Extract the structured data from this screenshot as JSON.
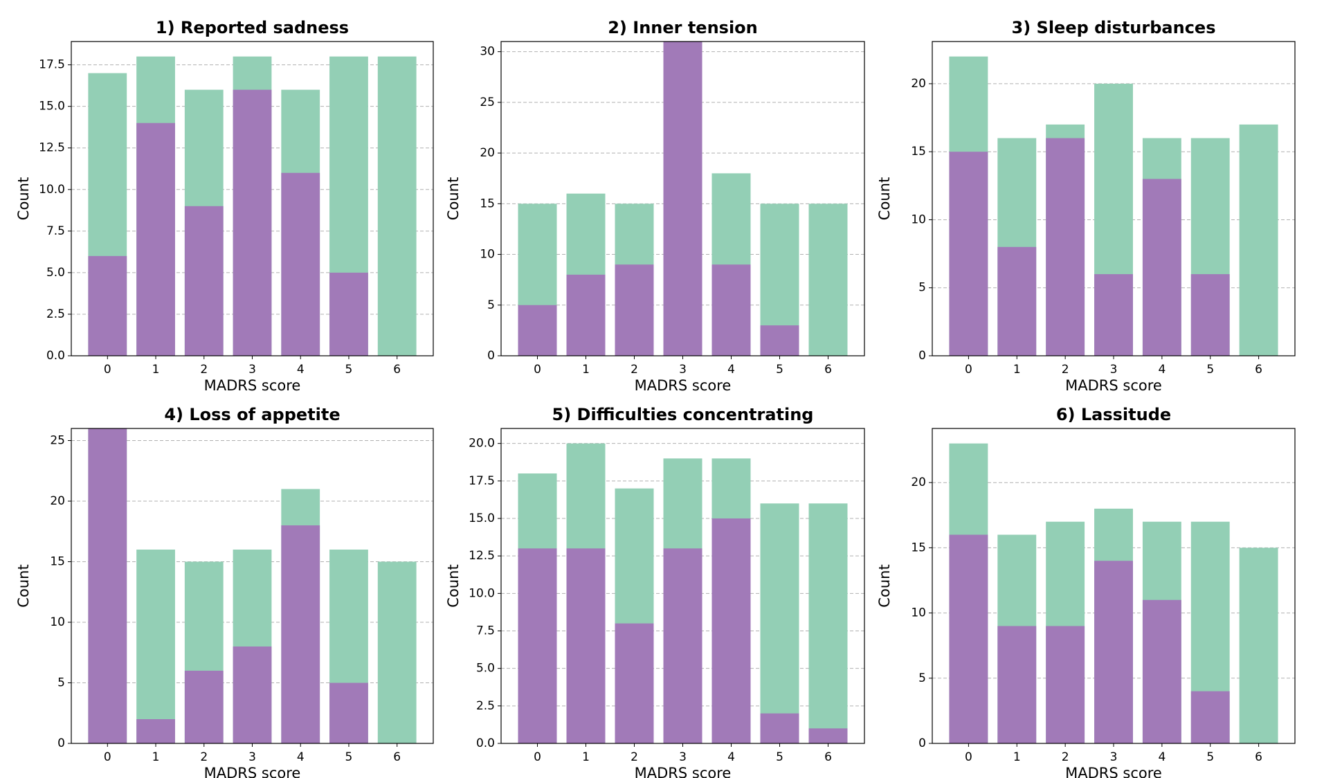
{
  "chart_data": [
    {
      "type": "bar",
      "title": "1) Reported sadness",
      "xlabel": "MADRS score",
      "ylabel": "Count",
      "categories": [
        "0",
        "1",
        "2",
        "3",
        "4",
        "5",
        "6"
      ],
      "series": [
        {
          "color": "#93cfb5",
          "values": [
            17,
            18,
            16,
            18,
            16,
            18,
            18
          ]
        },
        {
          "color": "#a17ab8",
          "values": [
            6,
            14,
            9,
            16,
            11,
            5,
            0
          ]
        }
      ],
      "ylim": [
        0,
        18.9
      ],
      "yticks": [
        {
          "value": 0,
          "label": "0.0"
        },
        {
          "value": 2.5,
          "label": "2.5"
        },
        {
          "value": 5,
          "label": "5.0"
        },
        {
          "value": 7.5,
          "label": "7.5"
        },
        {
          "value": 10,
          "label": "10.0"
        },
        {
          "value": 12.5,
          "label": "12.5"
        },
        {
          "value": 15,
          "label": "15.0"
        },
        {
          "value": 17.5,
          "label": "17.5"
        }
      ],
      "grid": true
    },
    {
      "type": "bar",
      "title": "2) Inner tension",
      "xlabel": "MADRS score",
      "ylabel": "Count",
      "categories": [
        "0",
        "1",
        "2",
        "3",
        "4",
        "5",
        "6"
      ],
      "series": [
        {
          "color": "#93cfb5",
          "values": [
            15,
            16,
            15,
            31,
            18,
            15,
            15
          ]
        },
        {
          "color": "#a17ab8",
          "values": [
            5,
            8,
            9,
            31,
            9,
            3,
            0
          ]
        }
      ],
      "ylim": [
        0,
        31
      ],
      "yticks": [
        0,
        5,
        10,
        15,
        20,
        25,
        30
      ],
      "grid": true
    },
    {
      "type": "bar",
      "title": "3) Sleep disturbances",
      "xlabel": "MADRS score",
      "ylabel": "Count",
      "categories": [
        "0",
        "1",
        "2",
        "3",
        "4",
        "5",
        "6"
      ],
      "series": [
        {
          "color": "#93cfb5",
          "values": [
            22,
            16,
            17,
            20,
            16,
            16,
            17
          ]
        },
        {
          "color": "#a17ab8",
          "values": [
            15,
            8,
            16,
            6,
            13,
            6,
            0
          ]
        }
      ],
      "ylim": [
        0,
        23.1
      ],
      "yticks": [
        0,
        5,
        10,
        15,
        20
      ],
      "grid": true
    },
    {
      "type": "bar",
      "title": "4) Loss of appetite",
      "xlabel": "MADRS score",
      "ylabel": "Count",
      "categories": [
        "0",
        "1",
        "2",
        "3",
        "4",
        "5",
        "6"
      ],
      "series": [
        {
          "color": "#93cfb5",
          "values": [
            26,
            16,
            15,
            16,
            21,
            16,
            15
          ]
        },
        {
          "color": "#a17ab8",
          "values": [
            26,
            2,
            6,
            8,
            18,
            5,
            0
          ]
        }
      ],
      "ylim": [
        0,
        26
      ],
      "yticks": [
        0,
        5,
        10,
        15,
        20,
        25
      ],
      "grid": true
    },
    {
      "type": "bar",
      "title": "5) Difficulties concentrating",
      "xlabel": "MADRS score",
      "ylabel": "Count",
      "categories": [
        "0",
        "1",
        "2",
        "3",
        "4",
        "5",
        "6"
      ],
      "series": [
        {
          "color": "#93cfb5",
          "values": [
            18,
            20,
            17,
            19,
            19,
            16,
            16
          ]
        },
        {
          "color": "#a17ab8",
          "values": [
            13,
            13,
            8,
            13,
            15,
            2,
            1
          ]
        }
      ],
      "ylim": [
        0,
        21
      ],
      "yticks": [
        {
          "value": 0,
          "label": "0.0"
        },
        {
          "value": 2.5,
          "label": "2.5"
        },
        {
          "value": 5,
          "label": "5.0"
        },
        {
          "value": 7.5,
          "label": "7.5"
        },
        {
          "value": 10,
          "label": "10.0"
        },
        {
          "value": 12.5,
          "label": "12.5"
        },
        {
          "value": 15,
          "label": "15.0"
        },
        {
          "value": 17.5,
          "label": "17.5"
        },
        {
          "value": 20,
          "label": "20.0"
        }
      ],
      "grid": true
    },
    {
      "type": "bar",
      "title": "6) Lassitude",
      "xlabel": "MADRS score",
      "ylabel": "Count",
      "categories": [
        "0",
        "1",
        "2",
        "3",
        "4",
        "5",
        "6"
      ],
      "series": [
        {
          "color": "#93cfb5",
          "values": [
            23,
            16,
            17,
            18,
            17,
            17,
            15
          ]
        },
        {
          "color": "#a17ab8",
          "values": [
            16,
            9,
            9,
            14,
            11,
            4,
            0
          ]
        }
      ],
      "ylim": [
        0,
        24.15
      ],
      "yticks": [
        0,
        5,
        10,
        15,
        20
      ],
      "grid": true
    }
  ]
}
